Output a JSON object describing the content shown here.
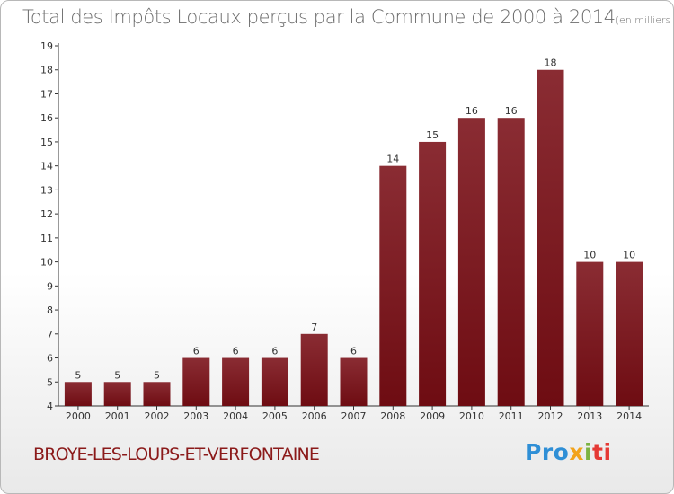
{
  "chart_data": {
    "type": "bar",
    "title": "Total des Impôts Locaux perçus par la Commune de 2000 à 2014",
    "subtitle": "(en milliers d'€)",
    "categories": [
      "2000",
      "2001",
      "2002",
      "2003",
      "2004",
      "2005",
      "2006",
      "2007",
      "2008",
      "2009",
      "2010",
      "2011",
      "2012",
      "2013",
      "2014"
    ],
    "values": [
      5,
      5,
      5,
      6,
      6,
      6,
      7,
      6,
      14,
      15,
      16,
      16,
      18,
      10,
      10
    ],
    "ylim": [
      4,
      19
    ],
    "yticks": [
      4,
      5,
      6,
      7,
      8,
      9,
      10,
      11,
      12,
      13,
      14,
      15,
      16,
      17,
      18,
      19
    ],
    "xlabel": "",
    "ylabel": "",
    "grid": false,
    "bar_color": "#6e0c12"
  },
  "footer": {
    "commune": "BROYE-LES-LOUPS-ET-VERFONTAINE",
    "logo": {
      "p1": "Pro",
      "p2": "x",
      "p3": "i",
      "p4": "ti"
    }
  },
  "colors": {
    "title": "#6d6d6d",
    "commune": "#8b1a1a",
    "axis": "#333333"
  }
}
